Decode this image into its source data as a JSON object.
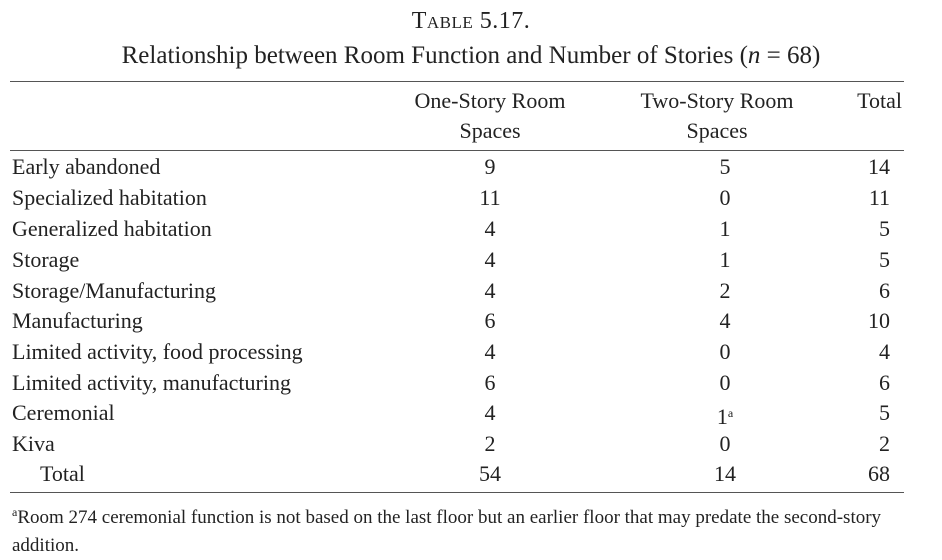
{
  "table": {
    "number": "Table 5.17.",
    "title": "Relationship between Room Function and Number of Stories (",
    "title_n": "n",
    "title_suffix": " = 68)",
    "headers": {
      "col1_line1": "One-Story Room",
      "col1_line2": "Spaces",
      "col2_line1": "Two-Story Room",
      "col2_line2": "Spaces",
      "col3": "Total"
    },
    "rows": [
      {
        "label": "Early abandoned",
        "one": "9",
        "two": "5",
        "total": "14"
      },
      {
        "label": "Specialized habitation",
        "one": "11",
        "two": "0",
        "total": "11"
      },
      {
        "label": "Generalized habitation",
        "one": "4",
        "two": "1",
        "total": "5"
      },
      {
        "label": "Storage",
        "one": "4",
        "two": "1",
        "total": "5"
      },
      {
        "label": "Storage/Manufacturing",
        "one": "4",
        "two": "2",
        "total": "6"
      },
      {
        "label": "Manufacturing",
        "one": "6",
        "two": "4",
        "total": "10"
      },
      {
        "label": "Limited activity, food processing",
        "one": "4",
        "two": "0",
        "total": "4"
      },
      {
        "label": "Limited activity, manufacturing",
        "one": "6",
        "two": "0",
        "total": "6"
      },
      {
        "label": "Ceremonial",
        "one": "4",
        "two": "1",
        "two_note": "a",
        "total": "5"
      },
      {
        "label": "Kiva",
        "one": "2",
        "two": "0",
        "total": "2"
      }
    ],
    "total_row": {
      "label": "Total",
      "one": "54",
      "two": "14",
      "total": "68"
    },
    "footnote_mark": "a",
    "footnote": "Room 274 ceremonial function is not based on the last floor but an earlier floor that may predate the second-story addition."
  }
}
